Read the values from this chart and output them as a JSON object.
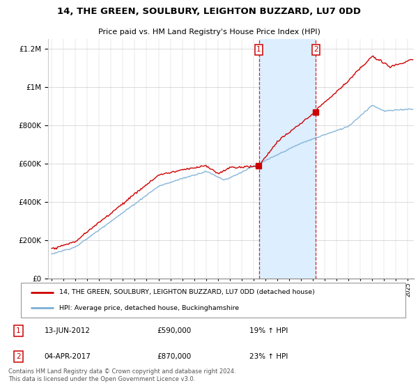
{
  "title": "14, THE GREEN, SOULBURY, LEIGHTON BUZZARD, LU7 0DD",
  "subtitle": "Price paid vs. HM Land Registry's House Price Index (HPI)",
  "legend_line1": "14, THE GREEN, SOULBURY, LEIGHTON BUZZARD, LU7 0DD (detached house)",
  "legend_line2": "HPI: Average price, detached house, Buckinghamshire",
  "sale1_label": "1",
  "sale1_date": "13-JUN-2012",
  "sale1_price": "£590,000",
  "sale1_info": "19% ↑ HPI",
  "sale2_label": "2",
  "sale2_date": "04-APR-2017",
  "sale2_price": "£870,000",
  "sale2_info": "23% ↑ HPI",
  "footer": "Contains HM Land Registry data © Crown copyright and database right 2024.\nThis data is licensed under the Open Government Licence v3.0.",
  "red_color": "#cc0000",
  "blue_color": "#7aaed4",
  "shaded_color": "#ddeeff",
  "sale1_x": 2012.45,
  "sale2_x": 2017.25,
  "ylim_min": 0,
  "ylim_max": 1250000,
  "xmin": 1994.7,
  "xmax": 2025.5
}
